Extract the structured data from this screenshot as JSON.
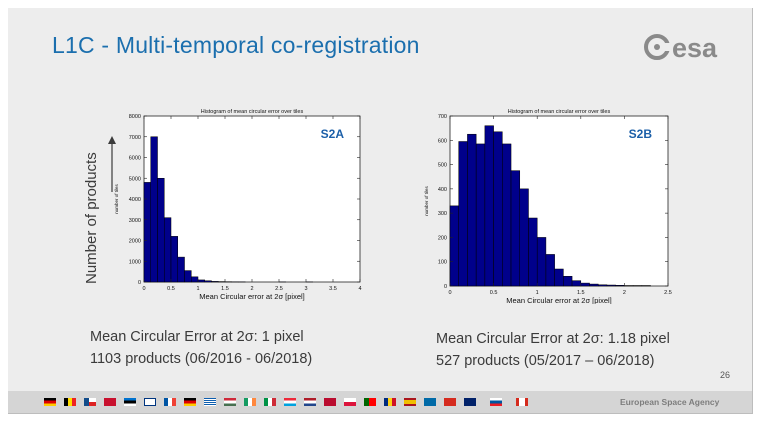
{
  "slide": {
    "title": "L1C - Multi-temporal co-registration",
    "logo_text": "esa",
    "page_number": "26",
    "footer_agency": "European Space Agency",
    "axis_arrow_label": "Number of products"
  },
  "captions": {
    "s2a": [
      "Mean Circular Error at 2σ: 1 pixel",
      "1103 products (06/2016  - 06/2018)"
    ],
    "s2b": [
      "Mean Circular Error at 2σ: 1.18 pixel",
      "527 products (05/2017 – 06/2018)"
    ]
  },
  "colors": {
    "bar_fill": "#00008b",
    "title_blue": "#1b6fae",
    "tag_blue": "#1b5fa8"
  },
  "chart_data": [
    {
      "type": "bar",
      "tag": "S2A",
      "title": "Histogram of mean circular error over tiles",
      "xlabel": "Mean Circular error at 2σ [pixel]",
      "ylabel": "number of tiles",
      "xlim": [
        0,
        4
      ],
      "ylim": [
        0,
        8000
      ],
      "xticks": [
        0,
        0.5,
        1,
        1.5,
        2,
        2.5,
        3,
        3.5,
        4
      ],
      "yticks": [
        0,
        1000,
        2000,
        3000,
        4000,
        5000,
        6000,
        7000,
        8000
      ],
      "bin_width": 0.125,
      "bins": [
        {
          "start": 0.0,
          "value": 4800
        },
        {
          "start": 0.125,
          "value": 7000
        },
        {
          "start": 0.25,
          "value": 5000
        },
        {
          "start": 0.375,
          "value": 3100
        },
        {
          "start": 0.5,
          "value": 2200
        },
        {
          "start": 0.625,
          "value": 1200
        },
        {
          "start": 0.75,
          "value": 550
        },
        {
          "start": 0.875,
          "value": 250
        },
        {
          "start": 1.0,
          "value": 100
        },
        {
          "start": 1.125,
          "value": 60
        },
        {
          "start": 1.25,
          "value": 30
        },
        {
          "start": 1.375,
          "value": 20
        },
        {
          "start": 1.5,
          "value": 15
        },
        {
          "start": 1.625,
          "value": 10
        },
        {
          "start": 1.75,
          "value": 8
        },
        {
          "start": 2.5,
          "value": 5
        },
        {
          "start": 3.0,
          "value": 5
        }
      ]
    },
    {
      "type": "bar",
      "tag": "S2B",
      "title": "Histogram of mean circular error over tiles",
      "xlabel": "Mean Circular error at 2σ [pixel]",
      "ylabel": "number of tiles",
      "xlim": [
        0,
        2.5
      ],
      "ylim": [
        0,
        700
      ],
      "xticks": [
        0,
        0.5,
        1,
        1.5,
        2,
        2.5
      ],
      "yticks": [
        0,
        100,
        200,
        300,
        400,
        500,
        600,
        700
      ],
      "bin_width": 0.1,
      "bins": [
        {
          "start": 0.0,
          "value": 330
        },
        {
          "start": 0.1,
          "value": 595
        },
        {
          "start": 0.2,
          "value": 625
        },
        {
          "start": 0.3,
          "value": 585
        },
        {
          "start": 0.4,
          "value": 660
        },
        {
          "start": 0.5,
          "value": 635
        },
        {
          "start": 0.6,
          "value": 585
        },
        {
          "start": 0.7,
          "value": 475
        },
        {
          "start": 0.8,
          "value": 400
        },
        {
          "start": 0.9,
          "value": 280
        },
        {
          "start": 1.0,
          "value": 200
        },
        {
          "start": 1.1,
          "value": 130
        },
        {
          "start": 1.2,
          "value": 70
        },
        {
          "start": 1.3,
          "value": 40
        },
        {
          "start": 1.4,
          "value": 22
        },
        {
          "start": 1.5,
          "value": 12
        },
        {
          "start": 1.6,
          "value": 8
        },
        {
          "start": 1.7,
          "value": 5
        },
        {
          "start": 1.8,
          "value": 4
        },
        {
          "start": 1.9,
          "value": 3
        },
        {
          "start": 2.0,
          "value": 2
        },
        {
          "start": 2.1,
          "value": 2
        },
        {
          "start": 2.2,
          "value": 2
        }
      ]
    }
  ]
}
